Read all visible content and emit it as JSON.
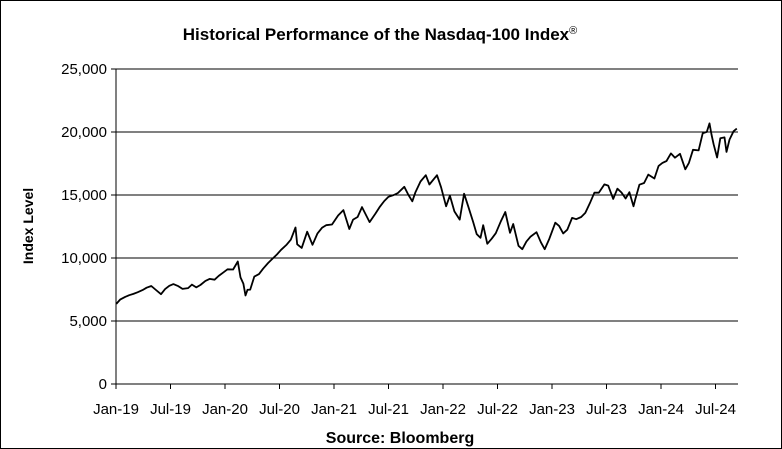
{
  "chart_data": {
    "type": "line",
    "title": "Historical  Performance of the Nasdaq-100 Index",
    "title_mark": "®",
    "xlabel": "Source: Bloomberg",
    "ylabel": "Index Level",
    "ylim": [
      0,
      25000
    ],
    "y_ticks": [
      0,
      5000,
      10000,
      15000,
      20000,
      25000
    ],
    "y_tick_labels": [
      "0",
      "5,000",
      "10,000",
      "15,000",
      "20,000",
      "25,000"
    ],
    "x_tick_labels": [
      "Jan-19",
      "Jul-19",
      "Jan-20",
      "Jul-20",
      "Jan-21",
      "Jul-21",
      "Jan-22",
      "Jul-22",
      "Jan-23",
      "Jul-23",
      "Jan-24",
      "Jul-24"
    ],
    "x_range": [
      "2019-01-01",
      "2024-10-15"
    ],
    "grid": true,
    "line_color": "#000000",
    "series": [
      {
        "points": [
          [
            "2019-01-02",
            6360
          ],
          [
            "2019-01-15",
            6700
          ],
          [
            "2019-02-01",
            6910
          ],
          [
            "2019-02-15",
            7050
          ],
          [
            "2019-03-01",
            7150
          ],
          [
            "2019-03-15",
            7280
          ],
          [
            "2019-04-01",
            7450
          ],
          [
            "2019-04-15",
            7640
          ],
          [
            "2019-05-01",
            7780
          ],
          [
            "2019-05-15",
            7500
          ],
          [
            "2019-06-03",
            7130
          ],
          [
            "2019-06-17",
            7530
          ],
          [
            "2019-07-01",
            7790
          ],
          [
            "2019-07-15",
            7930
          ],
          [
            "2019-08-01",
            7760
          ],
          [
            "2019-08-15",
            7550
          ],
          [
            "2019-09-03",
            7610
          ],
          [
            "2019-09-16",
            7890
          ],
          [
            "2019-10-01",
            7670
          ],
          [
            "2019-10-15",
            7860
          ],
          [
            "2019-11-01",
            8180
          ],
          [
            "2019-11-15",
            8340
          ],
          [
            "2019-12-02",
            8280
          ],
          [
            "2019-12-16",
            8580
          ],
          [
            "2020-01-02",
            8870
          ],
          [
            "2020-01-15",
            9100
          ],
          [
            "2020-02-03",
            9090
          ],
          [
            "2020-02-19",
            9720
          ],
          [
            "2020-02-28",
            8460
          ],
          [
            "2020-03-09",
            7950
          ],
          [
            "2020-03-16",
            7020
          ],
          [
            "2020-03-23",
            7480
          ],
          [
            "2020-04-01",
            7490
          ],
          [
            "2020-04-15",
            8520
          ],
          [
            "2020-05-01",
            8720
          ],
          [
            "2020-05-15",
            9150
          ],
          [
            "2020-06-01",
            9600
          ],
          [
            "2020-06-15",
            9920
          ],
          [
            "2020-07-01",
            10280
          ],
          [
            "2020-07-15",
            10650
          ],
          [
            "2020-08-03",
            11060
          ],
          [
            "2020-08-17",
            11450
          ],
          [
            "2020-09-02",
            12420
          ],
          [
            "2020-09-08",
            11090
          ],
          [
            "2020-09-23",
            10800
          ],
          [
            "2020-10-12",
            12090
          ],
          [
            "2020-10-30",
            11050
          ],
          [
            "2020-11-16",
            11950
          ],
          [
            "2020-12-01",
            12400
          ],
          [
            "2020-12-15",
            12600
          ],
          [
            "2021-01-04",
            12660
          ],
          [
            "2021-01-25",
            13370
          ],
          [
            "2021-02-12",
            13800
          ],
          [
            "2021-03-04",
            12300
          ],
          [
            "2021-03-17",
            13050
          ],
          [
            "2021-04-01",
            13250
          ],
          [
            "2021-04-16",
            14040
          ],
          [
            "2021-05-12",
            12850
          ],
          [
            "2021-06-01",
            13530
          ],
          [
            "2021-06-15",
            14040
          ],
          [
            "2021-07-01",
            14520
          ],
          [
            "2021-07-15",
            14860
          ],
          [
            "2021-08-02",
            15000
          ],
          [
            "2021-08-16",
            15160
          ],
          [
            "2021-09-07",
            15650
          ],
          [
            "2021-09-20",
            15040
          ],
          [
            "2021-10-04",
            14500
          ],
          [
            "2021-10-15",
            15230
          ],
          [
            "2021-11-01",
            16070
          ],
          [
            "2021-11-19",
            16570
          ],
          [
            "2021-12-01",
            15830
          ],
          [
            "2021-12-27",
            16570
          ],
          [
            "2022-01-10",
            15610
          ],
          [
            "2022-01-27",
            14100
          ],
          [
            "2022-02-09",
            14950
          ],
          [
            "2022-02-24",
            13700
          ],
          [
            "2022-03-14",
            13050
          ],
          [
            "2022-03-29",
            15100
          ],
          [
            "2022-04-12",
            14100
          ],
          [
            "2022-04-29",
            12850
          ],
          [
            "2022-05-11",
            11900
          ],
          [
            "2022-05-24",
            11600
          ],
          [
            "2022-06-02",
            12600
          ],
          [
            "2022-06-16",
            11130
          ],
          [
            "2022-07-01",
            11530
          ],
          [
            "2022-07-15",
            11970
          ],
          [
            "2022-08-01",
            12920
          ],
          [
            "2022-08-16",
            13650
          ],
          [
            "2022-09-01",
            12000
          ],
          [
            "2022-09-12",
            12700
          ],
          [
            "2022-09-30",
            10970
          ],
          [
            "2022-10-13",
            10700
          ],
          [
            "2022-10-27",
            11300
          ],
          [
            "2022-11-10",
            11700
          ],
          [
            "2022-11-30",
            12050
          ],
          [
            "2022-12-15",
            11250
          ],
          [
            "2022-12-28",
            10700
          ],
          [
            "2023-01-13",
            11540
          ],
          [
            "2023-02-02",
            12800
          ],
          [
            "2023-02-15",
            12550
          ],
          [
            "2023-03-01",
            11950
          ],
          [
            "2023-03-15",
            12250
          ],
          [
            "2023-03-31",
            13180
          ],
          [
            "2023-04-14",
            13080
          ],
          [
            "2023-05-01",
            13250
          ],
          [
            "2023-05-15",
            13580
          ],
          [
            "2023-06-01",
            14430
          ],
          [
            "2023-06-15",
            15180
          ],
          [
            "2023-06-30",
            15180
          ],
          [
            "2023-07-19",
            15840
          ],
          [
            "2023-08-01",
            15750
          ],
          [
            "2023-08-18",
            14690
          ],
          [
            "2023-09-01",
            15500
          ],
          [
            "2023-09-15",
            15200
          ],
          [
            "2023-09-29",
            14720
          ],
          [
            "2023-10-12",
            15220
          ],
          [
            "2023-10-26",
            14100
          ],
          [
            "2023-11-01",
            14670
          ],
          [
            "2023-11-15",
            15820
          ],
          [
            "2023-12-01",
            15950
          ],
          [
            "2023-12-15",
            16620
          ],
          [
            "2024-01-05",
            16310
          ],
          [
            "2024-01-19",
            17310
          ],
          [
            "2024-02-01",
            17550
          ],
          [
            "2024-02-15",
            17700
          ],
          [
            "2024-03-01",
            18300
          ],
          [
            "2024-03-15",
            17960
          ],
          [
            "2024-04-01",
            18270
          ],
          [
            "2024-04-19",
            17040
          ],
          [
            "2024-05-01",
            17550
          ],
          [
            "2024-05-15",
            18590
          ],
          [
            "2024-06-03",
            18540
          ],
          [
            "2024-06-17",
            19900
          ],
          [
            "2024-07-01",
            20010
          ],
          [
            "2024-07-10",
            20680
          ],
          [
            "2024-07-17",
            19800
          ],
          [
            "2024-07-24",
            19030
          ],
          [
            "2024-08-05",
            17980
          ],
          [
            "2024-08-16",
            19500
          ],
          [
            "2024-08-30",
            19570
          ],
          [
            "2024-09-06",
            18420
          ],
          [
            "2024-09-16",
            19400
          ],
          [
            "2024-09-30",
            20060
          ],
          [
            "2024-10-11",
            20270
          ]
        ]
      }
    ]
  }
}
